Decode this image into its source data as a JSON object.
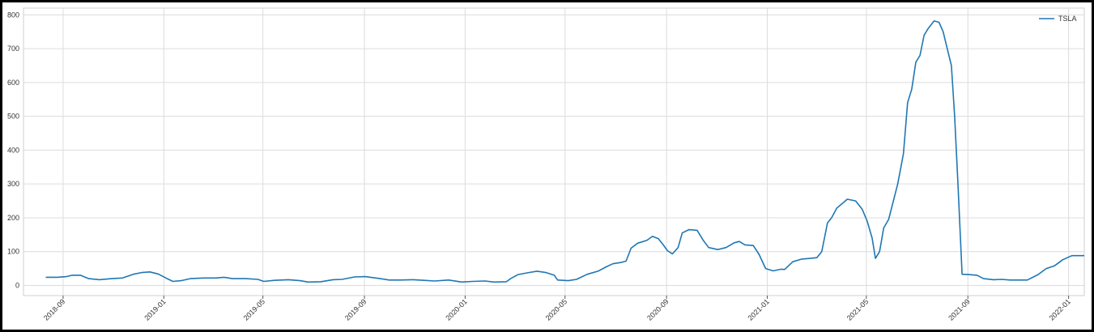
{
  "chart_data": {
    "type": "line",
    "title": "",
    "xlabel": "",
    "ylabel": "",
    "grid": true,
    "legend_position": "top-right",
    "xlim": [
      "2018-07-15",
      "2022-01-20"
    ],
    "ylim": [
      -30,
      820
    ],
    "y_ticks": [
      0,
      100,
      200,
      300,
      400,
      500,
      600,
      700,
      800
    ],
    "x_ticks": [
      "2018-09",
      "2019-01",
      "2019-05",
      "2019-09",
      "2020-01",
      "2020-05",
      "2020-09",
      "2021-01",
      "2021-05",
      "2021-09",
      "2022-01"
    ],
    "x_tick_labels": [
      "2018-09",
      "2019-01",
      "2019-05",
      "2019-09",
      "2020-01",
      "2020-05",
      "2020-09",
      "2021-01",
      "2021-05",
      "2021-09",
      "2022-01"
    ],
    "y_tick_labels": [
      "0",
      "100",
      "200",
      "300",
      "400",
      "500",
      "600",
      "700",
      "800"
    ],
    "series": [
      {
        "name": "TSLA",
        "color": "#1f77b4",
        "points": [
          [
            "2018-08-11",
            24
          ],
          [
            "2018-08-25",
            24
          ],
          [
            "2018-09-05",
            26
          ],
          [
            "2018-09-12",
            30
          ],
          [
            "2018-09-22",
            30
          ],
          [
            "2018-10-02",
            20
          ],
          [
            "2018-10-15",
            17
          ],
          [
            "2018-10-30",
            20
          ],
          [
            "2018-11-12",
            22
          ],
          [
            "2018-11-25",
            33
          ],
          [
            "2018-12-05",
            38
          ],
          [
            "2018-12-15",
            40
          ],
          [
            "2018-12-25",
            34
          ],
          [
            "2019-01-05",
            20
          ],
          [
            "2019-01-12",
            12
          ],
          [
            "2019-01-22",
            14
          ],
          [
            "2019-02-02",
            20
          ],
          [
            "2019-02-18",
            22
          ],
          [
            "2019-03-05",
            22
          ],
          [
            "2019-03-15",
            24
          ],
          [
            "2019-03-25",
            20
          ],
          [
            "2019-04-10",
            20
          ],
          [
            "2019-04-25",
            18
          ],
          [
            "2019-05-02",
            12
          ],
          [
            "2019-05-15",
            15
          ],
          [
            "2019-06-01",
            17
          ],
          [
            "2019-06-15",
            14
          ],
          [
            "2019-06-25",
            10
          ],
          [
            "2019-07-10",
            11
          ],
          [
            "2019-07-25",
            17
          ],
          [
            "2019-08-05",
            18
          ],
          [
            "2019-08-20",
            25
          ],
          [
            "2019-09-02",
            26
          ],
          [
            "2019-09-20",
            20
          ],
          [
            "2019-10-01",
            16
          ],
          [
            "2019-10-15",
            16
          ],
          [
            "2019-10-30",
            17
          ],
          [
            "2019-11-12",
            15
          ],
          [
            "2019-11-25",
            13
          ],
          [
            "2019-12-12",
            16
          ],
          [
            "2019-12-28",
            10
          ],
          [
            "2020-01-10",
            12
          ],
          [
            "2020-01-25",
            13
          ],
          [
            "2020-02-05",
            10
          ],
          [
            "2020-02-20",
            11
          ],
          [
            "2020-02-25",
            20
          ],
          [
            "2020-03-05",
            32
          ],
          [
            "2020-03-18",
            38
          ],
          [
            "2020-03-28",
            42
          ],
          [
            "2020-04-08",
            38
          ],
          [
            "2020-04-18",
            30
          ],
          [
            "2020-04-22",
            16
          ],
          [
            "2020-05-05",
            14
          ],
          [
            "2020-05-15",
            18
          ],
          [
            "2020-05-28",
            33
          ],
          [
            "2020-06-10",
            42
          ],
          [
            "2020-06-20",
            55
          ],
          [
            "2020-06-28",
            64
          ],
          [
            "2020-07-08",
            68
          ],
          [
            "2020-07-14",
            72
          ],
          [
            "2020-07-20",
            110
          ],
          [
            "2020-07-28",
            125
          ],
          [
            "2020-08-08",
            133
          ],
          [
            "2020-08-15",
            145
          ],
          [
            "2020-08-22",
            138
          ],
          [
            "2020-08-28",
            120
          ],
          [
            "2020-09-02",
            103
          ],
          [
            "2020-09-08",
            93
          ],
          [
            "2020-09-15",
            112
          ],
          [
            "2020-09-20",
            155
          ],
          [
            "2020-09-28",
            165
          ],
          [
            "2020-10-08",
            163
          ],
          [
            "2020-10-15",
            135
          ],
          [
            "2020-10-22",
            112
          ],
          [
            "2020-11-02",
            106
          ],
          [
            "2020-11-12",
            112
          ],
          [
            "2020-11-22",
            126
          ],
          [
            "2020-11-28",
            130
          ],
          [
            "2020-12-05",
            120
          ],
          [
            "2020-12-15",
            118
          ],
          [
            "2020-12-22",
            92
          ],
          [
            "2020-12-30",
            50
          ],
          [
            "2021-01-08",
            43
          ],
          [
            "2021-01-18",
            48
          ],
          [
            "2021-01-22",
            47
          ],
          [
            "2021-02-01",
            70
          ],
          [
            "2021-02-12",
            78
          ],
          [
            "2021-02-22",
            80
          ],
          [
            "2021-03-02",
            82
          ],
          [
            "2021-03-08",
            100
          ],
          [
            "2021-03-15",
            185
          ],
          [
            "2021-03-20",
            200
          ],
          [
            "2021-03-26",
            228
          ],
          [
            "2021-04-08",
            255
          ],
          [
            "2021-04-18",
            250
          ],
          [
            "2021-04-26",
            225
          ],
          [
            "2021-05-02",
            190
          ],
          [
            "2021-05-08",
            140
          ],
          [
            "2021-05-12",
            80
          ],
          [
            "2021-05-17",
            100
          ],
          [
            "2021-05-22",
            170
          ],
          [
            "2021-05-28",
            195
          ],
          [
            "2021-06-08",
            300
          ],
          [
            "2021-06-15",
            390
          ],
          [
            "2021-06-20",
            540
          ],
          [
            "2021-06-25",
            580
          ],
          [
            "2021-06-30",
            660
          ],
          [
            "2021-07-05",
            680
          ],
          [
            "2021-07-10",
            740
          ],
          [
            "2021-07-15",
            760
          ],
          [
            "2021-07-22",
            782
          ],
          [
            "2021-07-28",
            778
          ],
          [
            "2021-08-02",
            750
          ],
          [
            "2021-08-08",
            690
          ],
          [
            "2021-08-12",
            650
          ],
          [
            "2021-08-16",
            500
          ],
          [
            "2021-08-20",
            300
          ],
          [
            "2021-08-25",
            33
          ],
          [
            "2021-09-02",
            32
          ],
          [
            "2021-09-12",
            30
          ],
          [
            "2021-09-20",
            20
          ],
          [
            "2021-10-02",
            17
          ],
          [
            "2021-10-12",
            18
          ],
          [
            "2021-10-22",
            16
          ],
          [
            "2021-11-02",
            16
          ],
          [
            "2021-11-12",
            16
          ],
          [
            "2021-11-25",
            32
          ],
          [
            "2021-12-05",
            50
          ],
          [
            "2021-12-15",
            58
          ],
          [
            "2021-12-25",
            76
          ],
          [
            "2022-01-05",
            88
          ],
          [
            "2022-01-20",
            88
          ]
        ]
      }
    ]
  }
}
